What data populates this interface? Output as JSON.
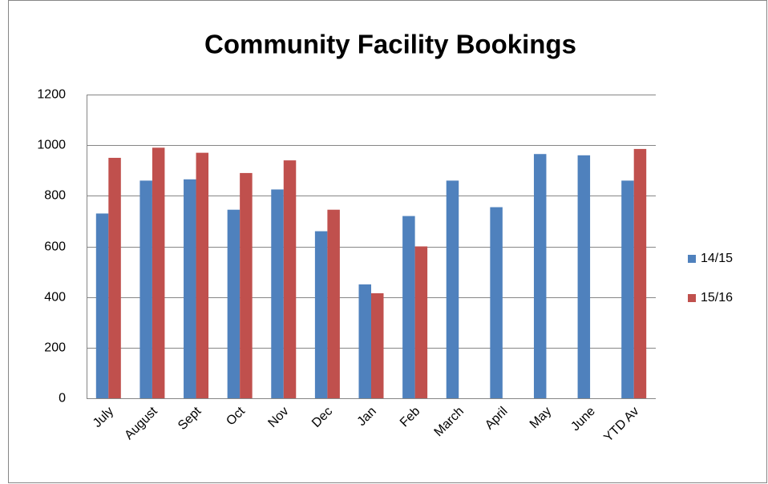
{
  "chart_data": {
    "type": "bar",
    "title": "Community Facility Bookings",
    "categories": [
      "July",
      "August",
      "Sept",
      "Oct",
      "Nov",
      "Dec",
      "Jan",
      "Feb",
      "March",
      "April",
      "May",
      "June",
      "YTD Av"
    ],
    "series": [
      {
        "name": "14/15",
        "color": "#4f81bd",
        "values": [
          730,
          860,
          865,
          745,
          825,
          660,
          450,
          720,
          860,
          755,
          965,
          960,
          860
        ]
      },
      {
        "name": "15/16",
        "color": "#c0504d",
        "values": [
          950,
          990,
          970,
          890,
          940,
          745,
          415,
          600,
          null,
          null,
          null,
          null,
          985
        ]
      }
    ],
    "ylim": [
      0,
      1200
    ],
    "yticks": [
      0,
      200,
      400,
      600,
      800,
      1000,
      1200
    ],
    "grid": true,
    "legend": "right"
  }
}
